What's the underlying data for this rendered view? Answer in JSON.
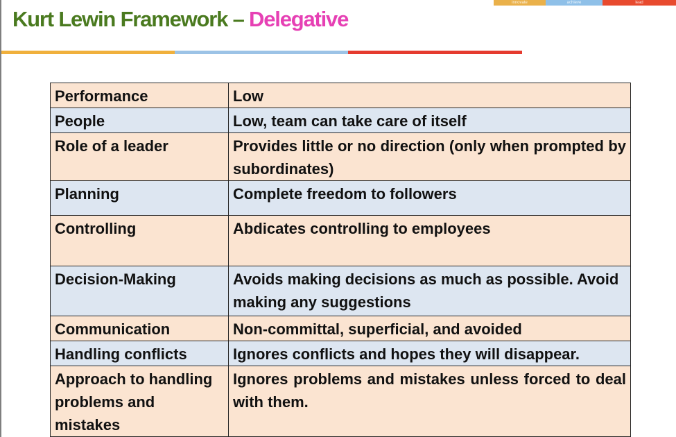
{
  "slide": {
    "title_main": "Kurt Lewin Framework – ",
    "title_accent": "Delegative",
    "title_colors": {
      "main": "#4a7a1f",
      "accent": "#e640b4"
    },
    "underline_colors": [
      "#f0b03c",
      "#9cc3e6",
      "#e53b2f"
    ],
    "logo_strip": {
      "colors": [
        "#eab14a",
        "#8fc0e8",
        "#e84a2e"
      ],
      "labels": [
        "innovate",
        "achieve",
        "lead"
      ]
    }
  },
  "table": {
    "row_colors": [
      "#fbe4d1",
      "#dde6f1"
    ],
    "rows": [
      {
        "label": "Performance",
        "value": "Low"
      },
      {
        "label": "People",
        "value": "Low, team can take care of itself"
      },
      {
        "label": "Role of a leader",
        "value": "Provides little or no direction (only when prompted by subordinates)"
      },
      {
        "label": "Planning",
        "value": "Complete freedom to followers"
      },
      {
        "label": "Controlling",
        "value": "Abdicates controlling to employees"
      },
      {
        "label": "Decision-Making",
        "value": "Avoids making decisions as much as possible. Avoid making any suggestions"
      },
      {
        "label": "Communication",
        "value": "Non-committal, superficial, and avoided"
      },
      {
        "label": "Handling conflicts",
        "value": "Ignores conflicts and hopes they will disappear."
      },
      {
        "label": "Approach to handling problems and mistakes",
        "value": "Ignores problems and mistakes unless forced to deal with them."
      }
    ]
  }
}
